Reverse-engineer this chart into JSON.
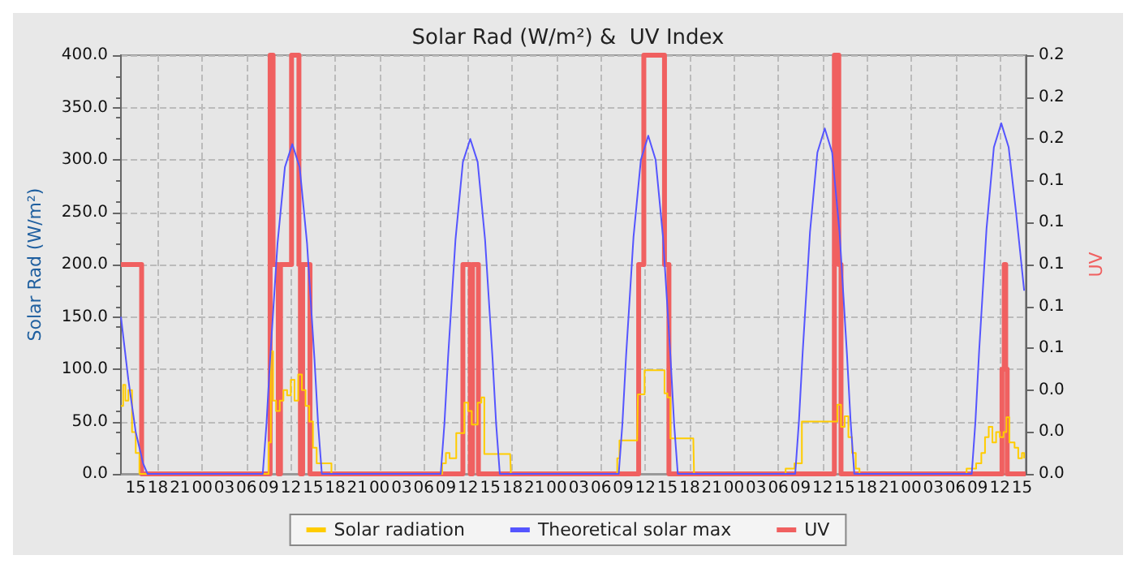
{
  "chart_data": {
    "type": "line",
    "title": "Solar Rad (W/m²) &  UV Index",
    "ylabel": "Solar Rad (W/m²)",
    "y2label": "UV",
    "xlim": [
      13,
      135.5
    ],
    "xticks": [
      {
        "value": 15,
        "label": "15"
      },
      {
        "value": 18,
        "label": "18"
      },
      {
        "value": 21,
        "label": "21"
      },
      {
        "value": 24,
        "label": "00"
      },
      {
        "value": 27,
        "label": "03"
      },
      {
        "value": 30,
        "label": "06"
      },
      {
        "value": 33,
        "label": "09"
      },
      {
        "value": 36,
        "label": "12"
      },
      {
        "value": 39,
        "label": "15"
      },
      {
        "value": 42,
        "label": "18"
      },
      {
        "value": 45,
        "label": "21"
      },
      {
        "value": 48,
        "label": "00"
      },
      {
        "value": 51,
        "label": "03"
      },
      {
        "value": 54,
        "label": "06"
      },
      {
        "value": 57,
        "label": "09"
      },
      {
        "value": 60,
        "label": "12"
      },
      {
        "value": 63,
        "label": "15"
      },
      {
        "value": 66,
        "label": "18"
      },
      {
        "value": 69,
        "label": "21"
      },
      {
        "value": 72,
        "label": "00"
      },
      {
        "value": 75,
        "label": "03"
      },
      {
        "value": 78,
        "label": "06"
      },
      {
        "value": 81,
        "label": "09"
      },
      {
        "value": 84,
        "label": "12"
      },
      {
        "value": 87,
        "label": "15"
      },
      {
        "value": 90,
        "label": "18"
      },
      {
        "value": 93,
        "label": "21"
      },
      {
        "value": 96,
        "label": "00"
      },
      {
        "value": 99,
        "label": "03"
      },
      {
        "value": 102,
        "label": "06"
      },
      {
        "value": 105,
        "label": "09"
      },
      {
        "value": 108,
        "label": "12"
      },
      {
        "value": 111,
        "label": "15"
      },
      {
        "value": 114,
        "label": "18"
      },
      {
        "value": 117,
        "label": "21"
      },
      {
        "value": 120,
        "label": "00"
      },
      {
        "value": 123,
        "label": "03"
      },
      {
        "value": 126,
        "label": "06"
      },
      {
        "value": 129,
        "label": "09"
      },
      {
        "value": 132,
        "label": "12"
      },
      {
        "value": 135,
        "label": "15"
      }
    ],
    "ylim": [
      0,
      400
    ],
    "yticks": [
      {
        "value": 0,
        "label": "0.0"
      },
      {
        "value": 50,
        "label": "50.0"
      },
      {
        "value": 100,
        "label": "100.0"
      },
      {
        "value": 150,
        "label": "150.0"
      },
      {
        "value": 200,
        "label": "200.0"
      },
      {
        "value": 250,
        "label": "250.0"
      },
      {
        "value": 300,
        "label": "300.0"
      },
      {
        "value": 350,
        "label": "350.0"
      },
      {
        "value": 400,
        "label": "400.0"
      }
    ],
    "y2lim": [
      0,
      0.2
    ],
    "y2ticks": [
      {
        "value": 0,
        "label": "0.0"
      },
      {
        "value": 0.02,
        "label": "0.0"
      },
      {
        "value": 0.04,
        "label": "0.0"
      },
      {
        "value": 0.06,
        "label": "0.1"
      },
      {
        "value": 0.08,
        "label": "0.1"
      },
      {
        "value": 0.1,
        "label": "0.1"
      },
      {
        "value": 0.12,
        "label": "0.1"
      },
      {
        "value": 0.14,
        "label": "0.1"
      },
      {
        "value": 0.16,
        "label": "0.2"
      },
      {
        "value": 0.18,
        "label": "0.2"
      },
      {
        "value": 0.2,
        "label": "0.2"
      }
    ],
    "grid": true,
    "legend": "bottom",
    "series": [
      {
        "name": "Solar radiation",
        "type": "step",
        "color": "#ffcc00",
        "x": [
          13,
          13.3,
          13.6,
          14,
          14.5,
          15,
          15.5,
          32.7,
          33,
          33.3,
          33.6,
          34,
          34.5,
          35,
          35.5,
          36,
          36.5,
          37,
          37.5,
          38,
          38.5,
          39,
          39.5,
          40.5,
          41.5,
          56.3,
          56.5,
          57,
          57.5,
          58.4,
          59.5,
          60,
          60.5,
          61.3,
          61.8,
          62.2,
          65.7,
          65.8,
          79.8,
          80.2,
          80.5,
          82.9,
          83,
          83.9,
          86.4,
          86.6,
          87,
          87.4,
          90.5,
          90.6,
          102.8,
          103,
          104.2,
          105.2,
          109.8,
          110,
          110.5,
          111,
          111.5,
          112,
          112.5,
          113,
          127,
          127.5,
          128.8,
          129.5,
          130,
          130.5,
          131,
          131.5,
          132,
          132.5,
          132.9,
          133.3,
          134,
          134.5,
          135,
          135.3
        ],
        "values": [
          65,
          85,
          70,
          80,
          40,
          20,
          0,
          0,
          30,
          117,
          70,
          60,
          70,
          80,
          75,
          90,
          70,
          95,
          80,
          65,
          50,
          25,
          10,
          10,
          0,
          0,
          10,
          20,
          15,
          39,
          68,
          60,
          47,
          68,
          73,
          19,
          19,
          0,
          0,
          15,
          32,
          32,
          76,
          99,
          99,
          77,
          73,
          34,
          34,
          0,
          0,
          5,
          10,
          50,
          50,
          66,
          45,
          55,
          35,
          20,
          5,
          0,
          0,
          5,
          10,
          20,
          35,
          45,
          30,
          40,
          35,
          40,
          54,
          30,
          25,
          15,
          20,
          15
        ]
      },
      {
        "name": "Theoretical solar max",
        "type": "line",
        "color": "#5555ff",
        "x": [
          13,
          13.5,
          14,
          15,
          16,
          16.6,
          32.2,
          32.7,
          33.2,
          34.2,
          35.2,
          36.2,
          37.2,
          38.2,
          39.2,
          39.7,
          40.2,
          56.3,
          56.8,
          57.3,
          58.3,
          59.3,
          60.3,
          61.3,
          62.3,
          63.3,
          63.8,
          64.3,
          80.4,
          80.9,
          81.4,
          82.4,
          83.4,
          84.4,
          85.4,
          86.4,
          87.4,
          87.9,
          88.4,
          104.3,
          104.8,
          105.3,
          106.3,
          107.3,
          108.3,
          109.3,
          110.3,
          111.3,
          111.8,
          112.3,
          128.2,
          128.7,
          129.2,
          130.2,
          131.2,
          132.2,
          133.2,
          134.2,
          135.3
        ],
        "values": [
          150,
          120,
          90,
          40,
          10,
          0,
          0,
          47,
          110,
          220,
          293,
          315,
          293,
          220,
          110,
          47,
          0,
          0,
          48,
          112,
          224,
          298,
          320,
          298,
          224,
          112,
          48,
          0,
          0,
          48,
          113,
          226,
          300,
          323,
          300,
          226,
          113,
          48,
          0,
          0,
          50,
          115,
          231,
          307,
          330,
          307,
          231,
          115,
          50,
          0,
          0,
          50,
          117,
          234,
          312,
          335,
          312,
          250,
          175
        ]
      },
      {
        "name": "UV",
        "type": "step",
        "axis": "y2",
        "color": "#f06060",
        "x": [
          13,
          15.8,
          33.2,
          33.6,
          34.3,
          34.6,
          36.1,
          37.1,
          37.3,
          37.6,
          38.6,
          59.3,
          60.3,
          60.6,
          61.4,
          83.1,
          83.8,
          86.6,
          87.2,
          109.6,
          110.2,
          110.5,
          132.3,
          132.6,
          132.8,
          133,
          135.5
        ],
        "values": [
          0.1,
          0,
          0.2,
          0.1,
          0,
          0.1,
          0.2,
          0.1,
          0,
          0.1,
          0,
          0.1,
          0,
          0.1,
          0,
          0.1,
          0.2,
          0.1,
          0,
          0.2,
          0.1,
          0,
          0.05,
          0.1,
          0.05,
          0,
          0
        ]
      }
    ]
  }
}
